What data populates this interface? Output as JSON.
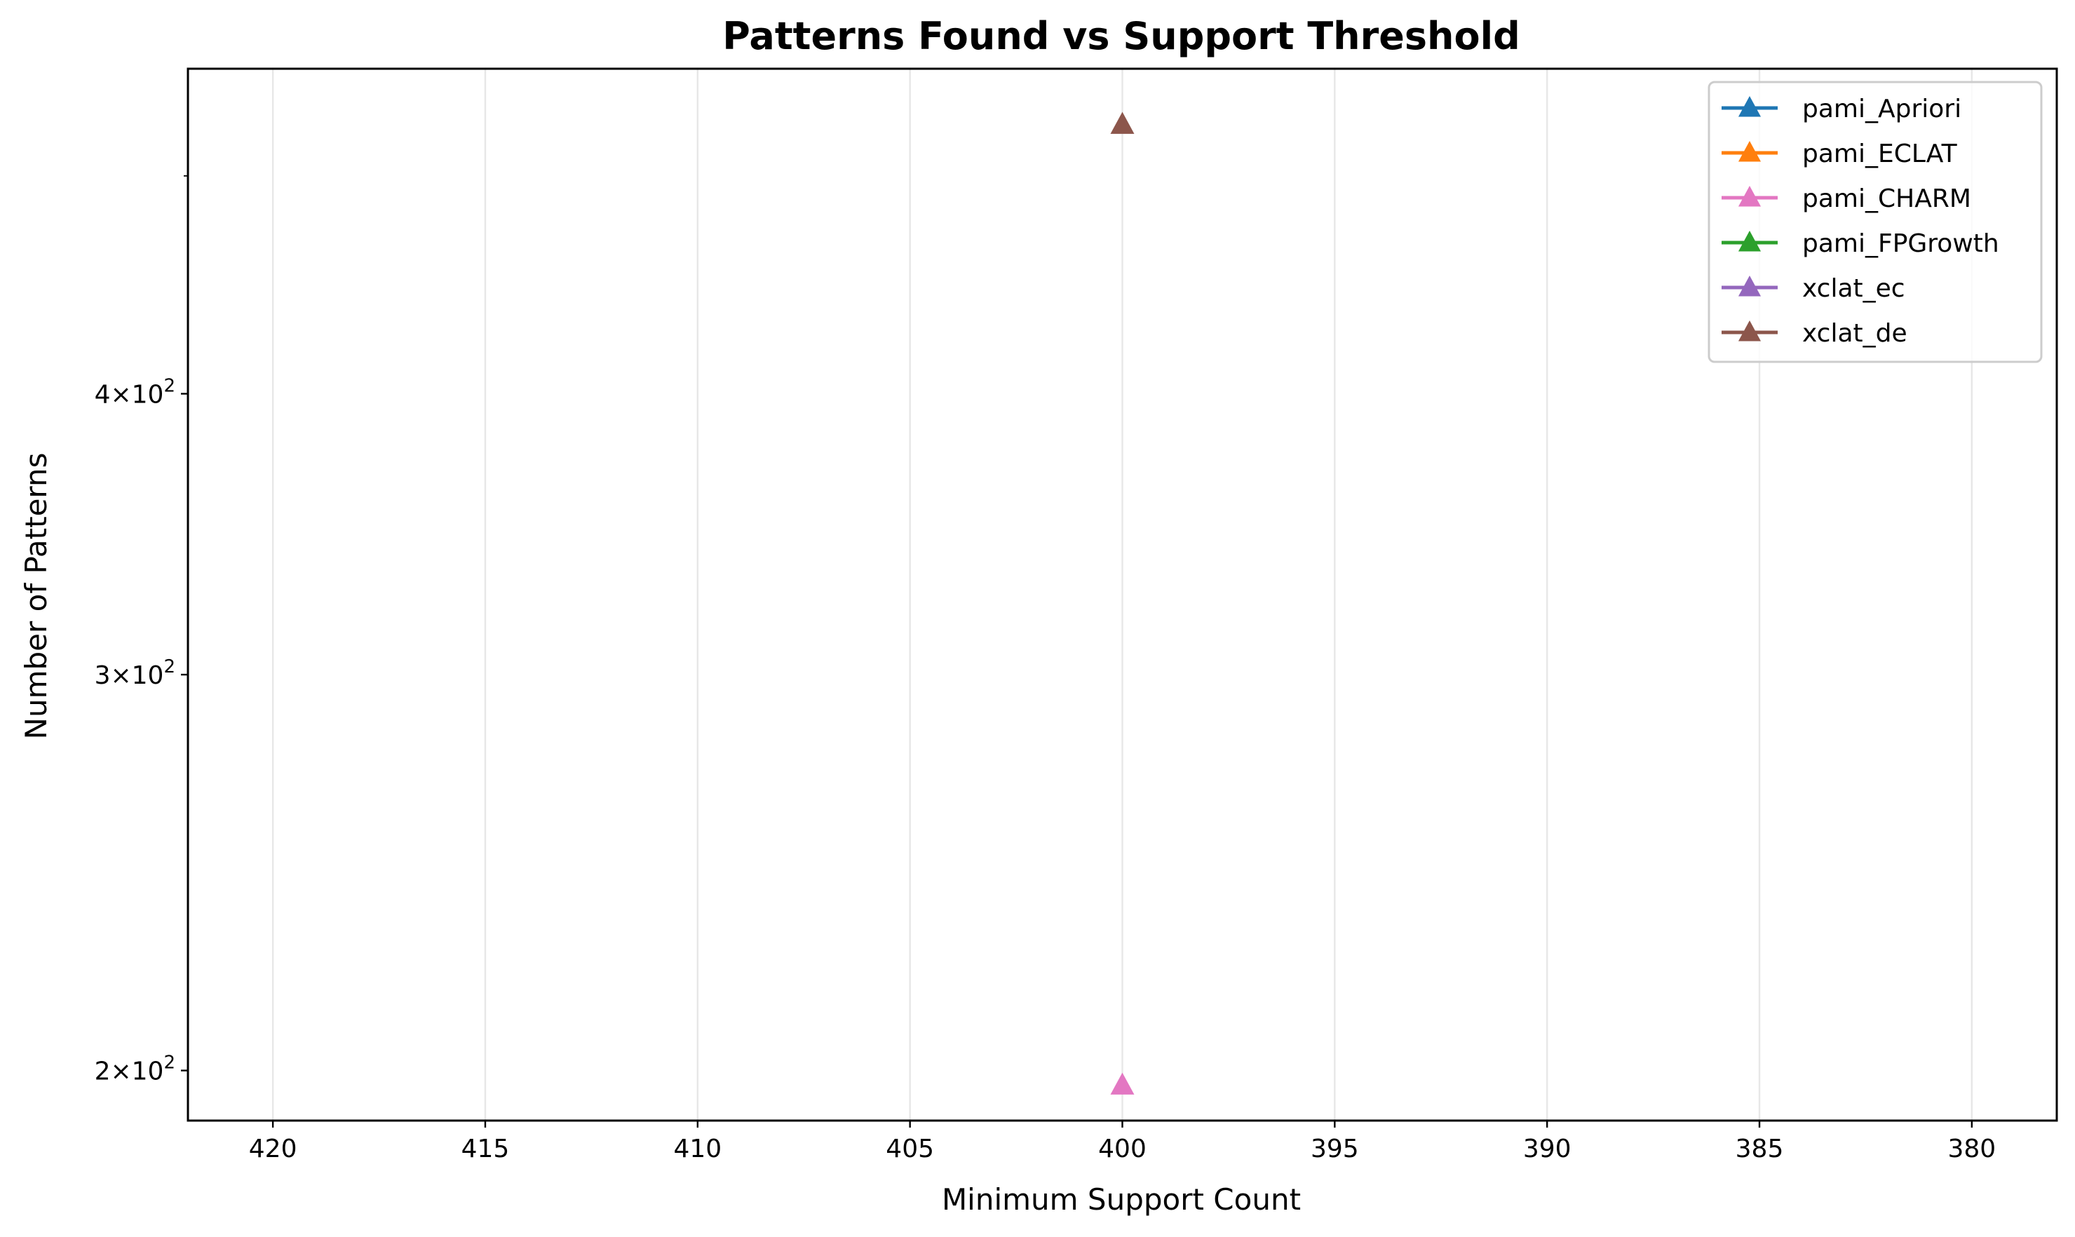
{
  "chart_data": {
    "type": "line",
    "title": "Patterns Found vs Support Threshold",
    "xlabel": "Minimum Support Count",
    "ylabel": "Number of Patterns",
    "x_inverted": true,
    "xlim": [
      422,
      378
    ],
    "x_ticks": [
      420,
      415,
      410,
      405,
      400,
      395,
      390,
      385,
      380
    ],
    "y_scale": "log",
    "ylim": [
      190,
      558
    ],
    "y_ticks": [
      {
        "value": 200,
        "mantissa": "2",
        "base": "10",
        "exp": "2"
      },
      {
        "value": 300,
        "mantissa": "3",
        "base": "10",
        "exp": "2"
      },
      {
        "value": 400,
        "mantissa": "4",
        "base": "10",
        "exp": "2"
      }
    ],
    "y_minor_ticks": [
      500
    ],
    "grid": {
      "x": true,
      "y": false
    },
    "legend_position": "upper right",
    "marker": "triangle",
    "series": [
      {
        "name": "pami_Apriori",
        "color": "#1f77b4",
        "points": []
      },
      {
        "name": "pami_ECLAT",
        "color": "#ff7f0e",
        "points": []
      },
      {
        "name": "pami_CHARM",
        "color": "#e377c2",
        "points": [
          {
            "x": 400,
            "y": 197
          }
        ]
      },
      {
        "name": "pami_FPGrowth",
        "color": "#2ca02c",
        "points": []
      },
      {
        "name": "xclat_ec",
        "color": "#9467bd",
        "points": []
      },
      {
        "name": "xclat_de",
        "color": "#8c564b",
        "points": [
          {
            "x": 400,
            "y": 527
          }
        ]
      }
    ]
  }
}
